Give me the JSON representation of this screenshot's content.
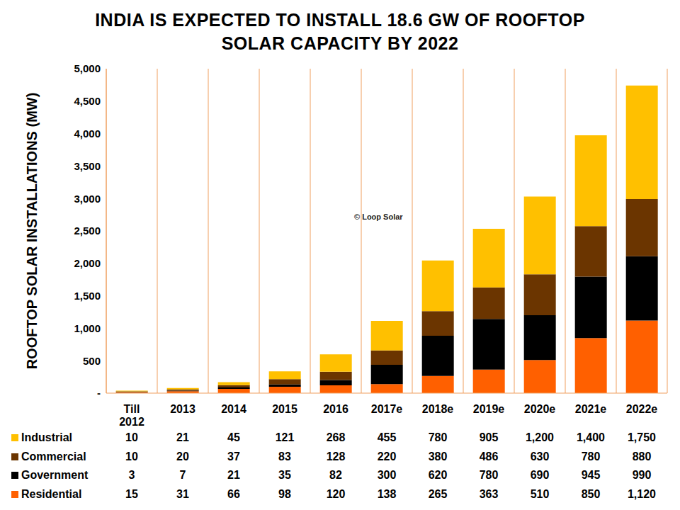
{
  "chart_data": {
    "type": "bar",
    "title": "INDIA IS EXPECTED TO INSTALL 18.6 GW OF ROOFTOP SOLAR CAPACITY BY 2022",
    "y_label": "ROOFTOP SOLAR INSTALLATIONS (MW)",
    "annotation": "© Loop Solar",
    "categories": [
      "Till 2012",
      "2013",
      "2014",
      "2015",
      "2016",
      "2017e",
      "2018e",
      "2019e",
      "2020e",
      "2021e",
      "2022e"
    ],
    "series": [
      {
        "name": "Residential",
        "color": "#FF6000",
        "values": [
          15,
          31,
          66,
          98,
          120,
          138,
          265,
          363,
          510,
          850,
          1120
        ],
        "value_labels": [
          "15",
          "31",
          "66",
          "98",
          "120",
          "138",
          "265",
          "363",
          "510",
          "850",
          "1,120"
        ]
      },
      {
        "name": "Government",
        "color": "#000000",
        "values": [
          3,
          7,
          21,
          35,
          82,
          300,
          620,
          780,
          690,
          945,
          990
        ],
        "value_labels": [
          "3",
          "7",
          "21",
          "35",
          "82",
          "300",
          "620",
          "780",
          "690",
          "945",
          "990"
        ]
      },
      {
        "name": "Commercial",
        "color": "#6B3500",
        "values": [
          10,
          20,
          37,
          83,
          128,
          220,
          380,
          486,
          630,
          780,
          880
        ],
        "value_labels": [
          "10",
          "20",
          "37",
          "83",
          "128",
          "220",
          "380",
          "486",
          "630",
          "780",
          "880"
        ]
      },
      {
        "name": "Industrial",
        "color": "#FFC000",
        "values": [
          10,
          21,
          45,
          121,
          268,
          455,
          780,
          905,
          1200,
          1400,
          1750
        ],
        "value_labels": [
          "10",
          "21",
          "45",
          "121",
          "268",
          "455",
          "780",
          "905",
          "1,200",
          "1,400",
          "1,750"
        ]
      }
    ],
    "ylim": [
      0,
      5000
    ],
    "yticks": [
      {
        "value": 0,
        "label": "-"
      },
      500,
      {
        "value": 1000,
        "label": "1,000"
      },
      {
        "value": 1500,
        "label": "1,500"
      },
      {
        "value": 2000,
        "label": "2,000"
      },
      {
        "value": 2500,
        "label": "2,500"
      },
      {
        "value": 3000,
        "label": "3,000"
      },
      {
        "value": 3500,
        "label": "3,500"
      },
      {
        "value": 4000,
        "label": "4,000"
      },
      {
        "value": 4500,
        "label": "4,500"
      },
      {
        "value": 5000,
        "label": "5,000"
      }
    ],
    "stacked": true,
    "grid": true,
    "legend": "bottom",
    "data_labels": true
  }
}
